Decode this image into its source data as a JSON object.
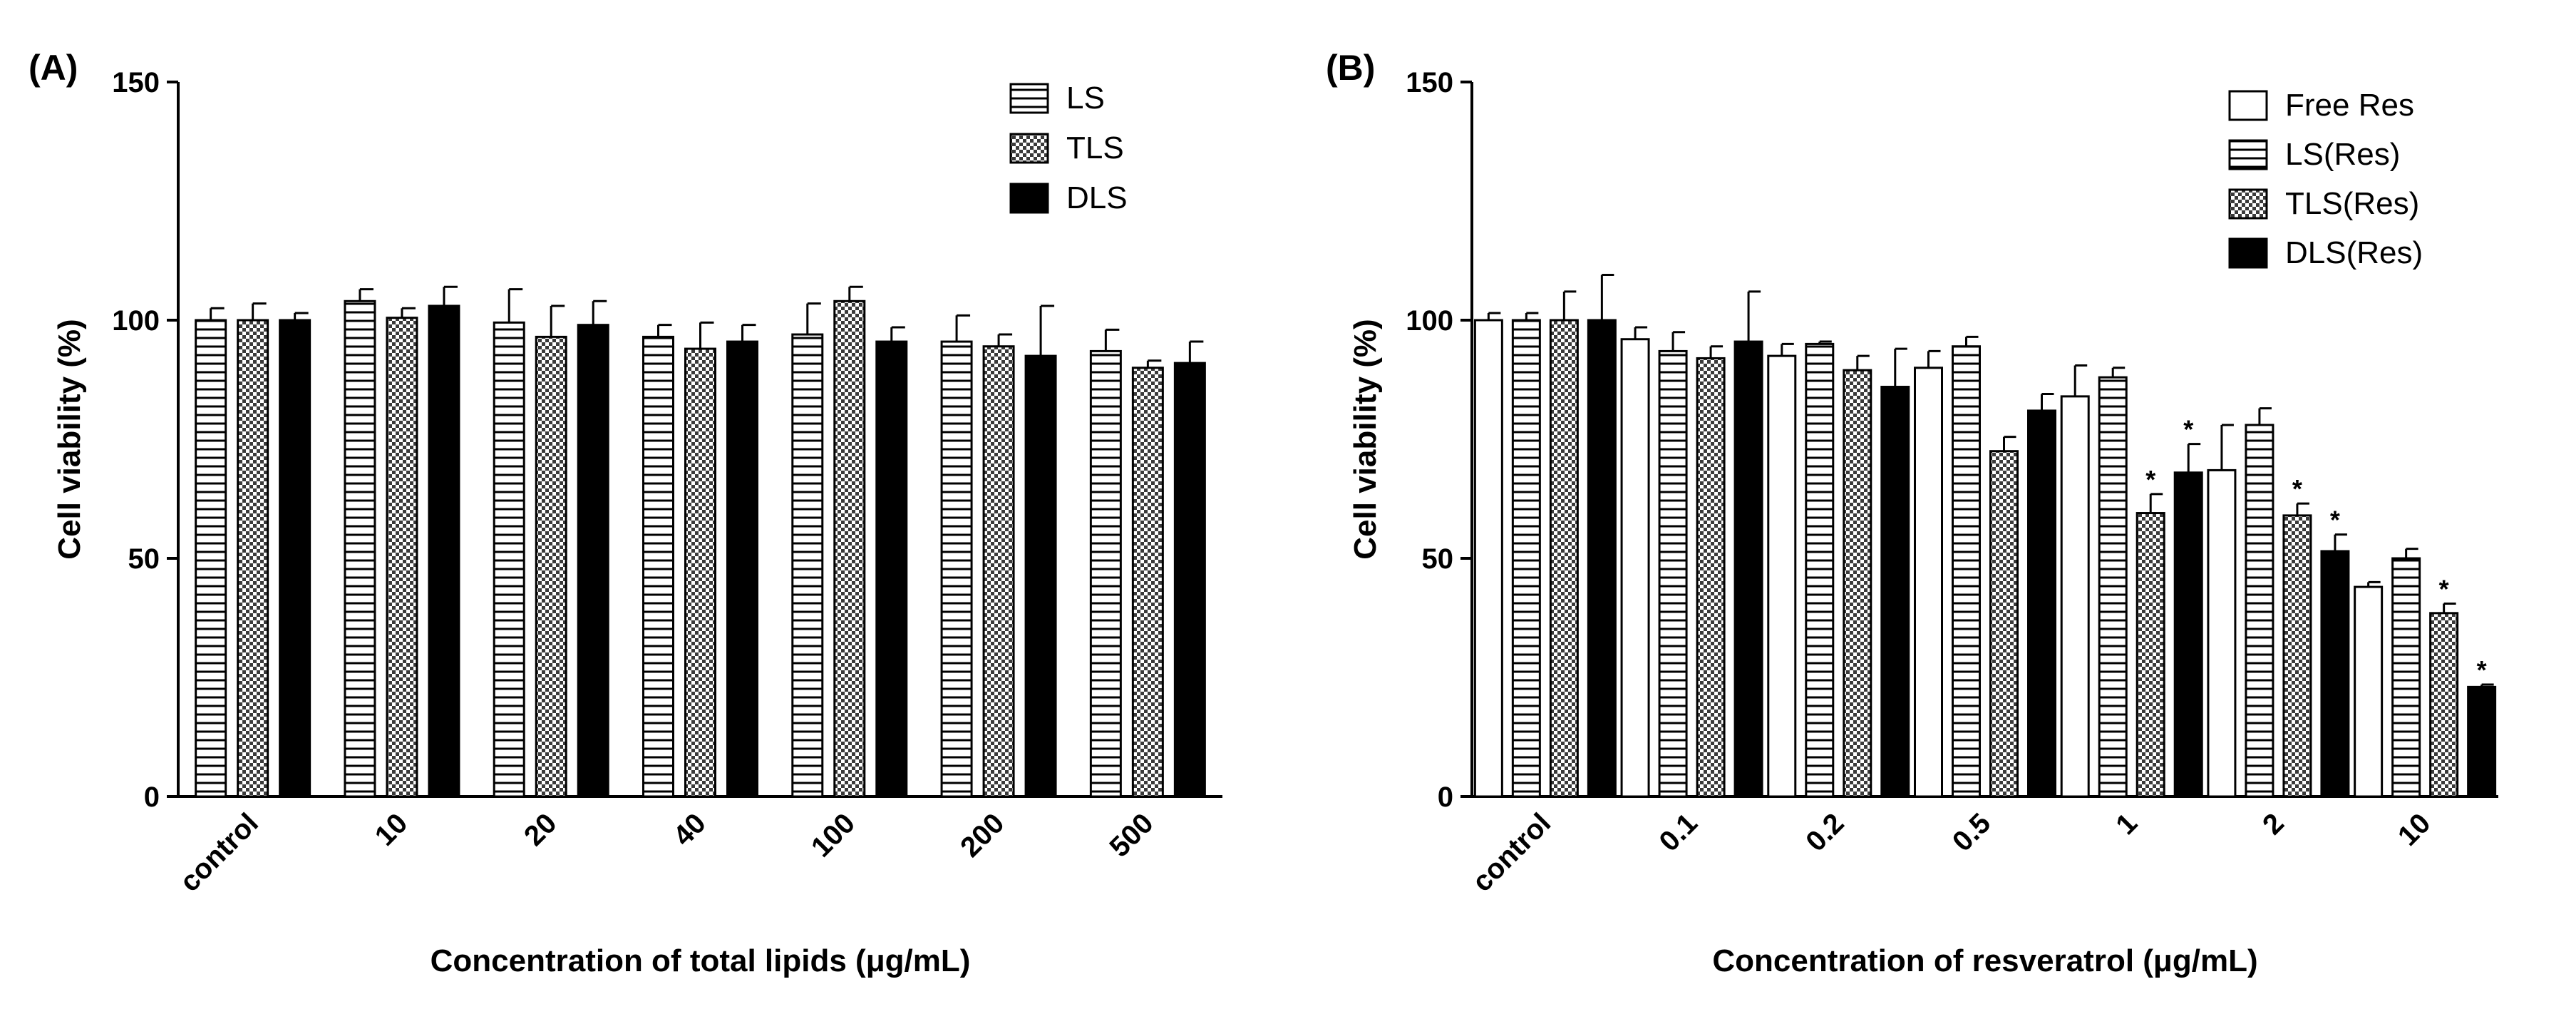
{
  "chart_data": [
    {
      "panel_label": "(A)",
      "type": "bar",
      "title": "",
      "xlabel": "Concentration of total lipids  (μg/mL)",
      "ylabel": "Cell viability (%)",
      "ylim": [
        0,
        150
      ],
      "yticks": [
        "0",
        "50",
        "100",
        "150"
      ],
      "legend_position": "top-right",
      "categories": [
        "control",
        "10",
        "20",
        "40",
        "100",
        "200",
        "500"
      ],
      "series": [
        {
          "name": "LS",
          "pattern": "horizontal-lines",
          "values": [
            100,
            104,
            99.5,
            96.5,
            97,
            95.5,
            93.5
          ],
          "errors": [
            2.5,
            2.5,
            7,
            2.5,
            6.5,
            5.5,
            4.5
          ],
          "significant": [
            false,
            false,
            false,
            false,
            false,
            false,
            false
          ]
        },
        {
          "name": "TLS",
          "pattern": "checker",
          "values": [
            100,
            100.5,
            96.5,
            94,
            104,
            94.5,
            90
          ],
          "errors": [
            3.5,
            2,
            6.5,
            5.5,
            3,
            2.5,
            1.5
          ],
          "significant": [
            false,
            false,
            false,
            false,
            false,
            false,
            false
          ]
        },
        {
          "name": "DLS",
          "pattern": "solid-black",
          "values": [
            100,
            103,
            99,
            95.5,
            95.5,
            92.5,
            91
          ],
          "errors": [
            1.5,
            4,
            5,
            3.5,
            3,
            10.5,
            4.5
          ],
          "significant": [
            false,
            false,
            false,
            false,
            false,
            false,
            false
          ]
        }
      ]
    },
    {
      "panel_label": "(B)",
      "type": "bar",
      "title": "",
      "xlabel": "Concentration of resveratrol  (μg/mL)",
      "ylabel": "Cell viability (%)",
      "ylim": [
        0,
        150
      ],
      "yticks": [
        "0",
        "50",
        "100",
        "150"
      ],
      "legend_position": "top-right",
      "categories": [
        "control",
        "0.1",
        "0.2",
        "0.5",
        "1",
        "2",
        "10"
      ],
      "series": [
        {
          "name": "Free Res",
          "pattern": "white",
          "values": [
            100,
            96,
            92.5,
            90,
            84,
            68.5,
            44
          ],
          "errors": [
            1.5,
            2.5,
            2.5,
            3.5,
            6.5,
            9.5,
            1
          ],
          "significant": [
            false,
            false,
            false,
            false,
            false,
            false,
            false
          ]
        },
        {
          "name": "LS(Res)",
          "pattern": "horizontal-lines",
          "values": [
            100,
            93.5,
            95,
            94.5,
            88,
            78,
            50
          ],
          "errors": [
            1.5,
            4,
            0.5,
            2,
            2,
            3.5,
            2
          ],
          "significant": [
            false,
            false,
            false,
            false,
            false,
            false,
            false
          ]
        },
        {
          "name": "TLS(Res)",
          "pattern": "checker",
          "values": [
            100,
            92,
            89.5,
            72.5,
            59.5,
            59,
            38.5
          ],
          "errors": [
            6,
            2.5,
            3,
            3,
            4,
            2.5,
            2
          ],
          "significant": [
            false,
            false,
            false,
            false,
            true,
            true,
            true
          ]
        },
        {
          "name": "DLS(Res)",
          "pattern": "solid-black",
          "values": [
            100,
            95.5,
            86,
            81,
            68,
            51.5,
            23
          ],
          "errors": [
            9.5,
            10.5,
            8,
            3.5,
            6,
            3.5,
            0.5
          ],
          "significant": [
            false,
            false,
            false,
            false,
            true,
            true,
            true
          ]
        }
      ]
    }
  ],
  "significance_marker": "*"
}
